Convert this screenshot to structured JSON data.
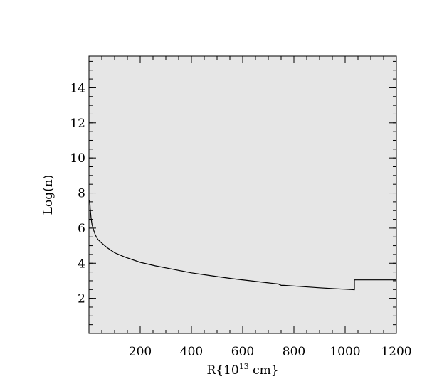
{
  "chart_data": {
    "type": "line",
    "title": "",
    "xlabel": "R{10",
    "xlabel_exponent": "13",
    "xlabel_suffix": " cm}",
    "ylabel": "Log(n)",
    "xlim": [
      0,
      1200
    ],
    "ylim": [
      0,
      15.8
    ],
    "x_ticks": [
      200,
      400,
      600,
      800,
      1000,
      1200
    ],
    "y_ticks": [
      2,
      4,
      6,
      8,
      10,
      12,
      14
    ],
    "x_minor_step": 50,
    "y_minor_step": 0.5,
    "grid": false,
    "background": "#e6e6e6",
    "line_color": "#000000",
    "series": [
      {
        "x": [
          3,
          5,
          8,
          12,
          18,
          25,
          35,
          50,
          70,
          100,
          140,
          200,
          260,
          320,
          400,
          480,
          560,
          640,
          700,
          740,
          742,
          748,
          750,
          760,
          820,
          900,
          960,
          1000,
          1035,
          1036,
          1036,
          1100,
          1200
        ],
        "y": [
          7.6,
          7.1,
          6.6,
          6.2,
          5.9,
          5.6,
          5.35,
          5.15,
          4.9,
          4.6,
          4.35,
          4.05,
          3.85,
          3.68,
          3.45,
          3.28,
          3.12,
          2.98,
          2.88,
          2.82,
          2.79,
          2.76,
          2.74,
          2.74,
          2.68,
          2.6,
          2.55,
          2.52,
          2.49,
          2.49,
          3.05,
          3.05,
          3.05
        ]
      }
    ]
  }
}
